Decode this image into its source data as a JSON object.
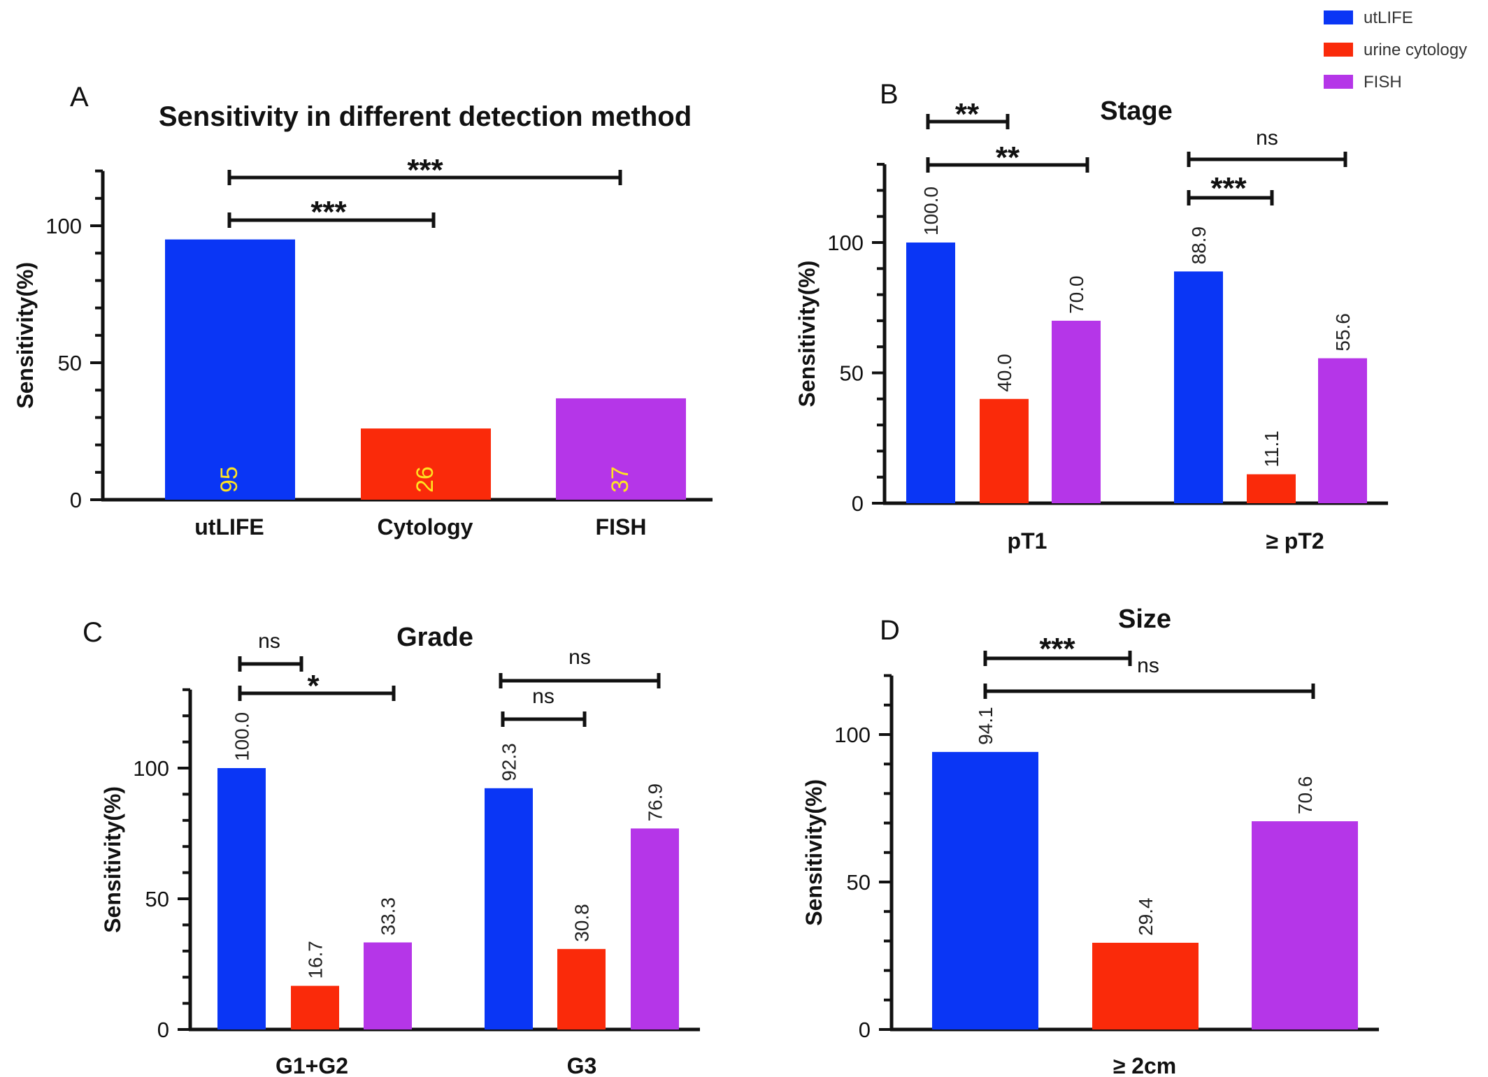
{
  "legend": {
    "entries": [
      {
        "label": "utLIFE",
        "color": "#0a36f5"
      },
      {
        "label": "urine cytology",
        "color": "#fa2a0a"
      },
      {
        "label": "FISH",
        "color": "#b536e8"
      }
    ]
  },
  "chart_data": [
    {
      "panel": "A",
      "type": "bar",
      "title": "Sensitivity in different detection method",
      "ylabel": "Sensitivity(%)",
      "ylim": [
        0,
        120
      ],
      "yticks": [
        0,
        50,
        100
      ],
      "categories": [
        "utLIFE",
        "Cytology",
        "FISH"
      ],
      "values": [
        95,
        26,
        37
      ],
      "value_labels": [
        "95",
        "26",
        "37"
      ],
      "colors": [
        "#0a36f5",
        "#fa2a0a",
        "#b536e8"
      ],
      "comparisons": [
        {
          "from": "utLIFE",
          "to": "Cytology",
          "label": "***"
        },
        {
          "from": "utLIFE",
          "to": "FISH",
          "label": "***"
        }
      ]
    },
    {
      "panel": "B",
      "type": "bar",
      "title": "Stage",
      "ylabel": "Sensitivity(%)",
      "ylim": [
        0,
        130
      ],
      "yticks": [
        0,
        50,
        100
      ],
      "categories": [
        "pT1",
        "≥ pT2"
      ],
      "series": [
        {
          "name": "utLIFE",
          "values": [
            100.0,
            88.9
          ],
          "value_labels": [
            "100.0",
            "88.9"
          ]
        },
        {
          "name": "urine cytology",
          "values": [
            40.0,
            11.1
          ],
          "value_labels": [
            "40.0",
            "11.1"
          ]
        },
        {
          "name": "FISH",
          "values": [
            70.0,
            55.6
          ],
          "value_labels": [
            "70.0",
            "55.6"
          ]
        }
      ],
      "comparisons": [
        {
          "category": "pT1",
          "from": "utLIFE",
          "to": "urine cytology",
          "label": "**"
        },
        {
          "category": "pT1",
          "from": "utLIFE",
          "to": "FISH",
          "label": "**"
        },
        {
          "category": "≥ pT2",
          "from": "utLIFE",
          "to": "urine cytology",
          "label": "***"
        },
        {
          "category": "≥ pT2",
          "from": "utLIFE",
          "to": "FISH",
          "label": "ns"
        }
      ]
    },
    {
      "panel": "C",
      "type": "bar",
      "title": "Grade",
      "ylabel": "Sensitivity(%)",
      "ylim": [
        0,
        130
      ],
      "yticks": [
        0,
        50,
        100
      ],
      "categories": [
        "G1+G2",
        "G3"
      ],
      "series": [
        {
          "name": "utLIFE",
          "values": [
            100.0,
            92.3
          ],
          "value_labels": [
            "100.0",
            "92.3"
          ]
        },
        {
          "name": "urine cytology",
          "values": [
            16.7,
            30.8
          ],
          "value_labels": [
            "16.7",
            "30.8"
          ]
        },
        {
          "name": "FISH",
          "values": [
            33.3,
            76.9
          ],
          "value_labels": [
            "33.3",
            "76.9"
          ]
        }
      ],
      "comparisons": [
        {
          "category": "G1+G2",
          "from": "utLIFE",
          "to": "urine cytology",
          "label": "ns"
        },
        {
          "category": "G1+G2",
          "from": "utLIFE",
          "to": "FISH",
          "label": "*"
        },
        {
          "category": "G3",
          "from": "utLIFE",
          "to": "urine cytology",
          "label": "ns"
        },
        {
          "category": "G3",
          "from": "utLIFE",
          "to": "FISH",
          "label": "ns"
        }
      ]
    },
    {
      "panel": "D",
      "type": "bar",
      "title": "Size",
      "ylabel": "Sensitivity(%)",
      "ylim": [
        0,
        120
      ],
      "yticks": [
        0,
        50,
        100
      ],
      "categories": [
        "≥ 2cm"
      ],
      "series": [
        {
          "name": "utLIFE",
          "values": [
            94.1
          ],
          "value_labels": [
            "94.1"
          ]
        },
        {
          "name": "urine cytology",
          "values": [
            29.4
          ],
          "value_labels": [
            "29.4"
          ]
        },
        {
          "name": "FISH",
          "values": [
            70.6
          ],
          "value_labels": [
            "70.6"
          ]
        }
      ],
      "comparisons": [
        {
          "category": "≥ 2cm",
          "from": "utLIFE",
          "to": "urine cytology",
          "label": "***"
        },
        {
          "category": "≥ 2cm",
          "from": "utLIFE",
          "to": "FISH",
          "label": "ns"
        }
      ]
    }
  ]
}
